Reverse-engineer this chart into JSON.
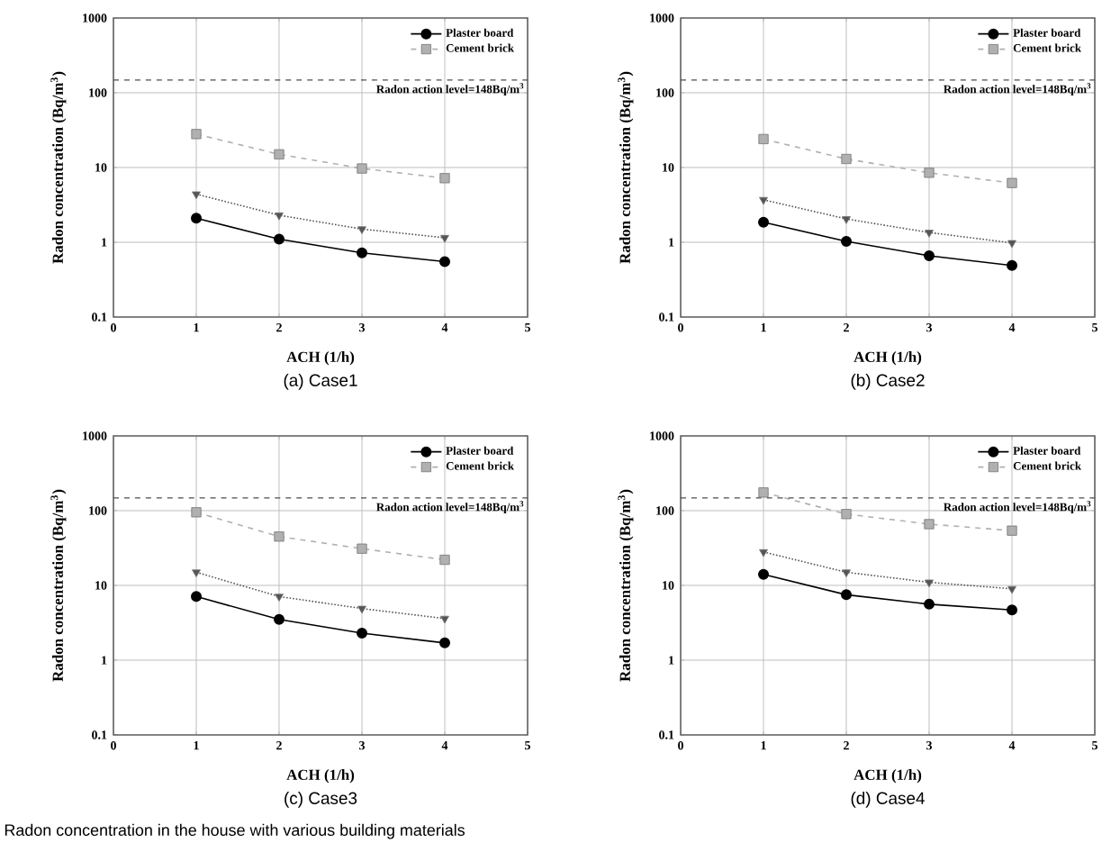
{
  "chart_data": [
    {
      "type": "line",
      "title": "(a)  Case1",
      "xlabel": "ACH (1/h)",
      "ylabel": "Radon concentration (Bq/m$^{3}$)",
      "x": [
        1,
        2,
        3,
        4
      ],
      "xlim": [
        0,
        5
      ],
      "xticks": [
        0,
        1,
        2,
        3,
        4,
        5
      ],
      "ylim": [
        0.1,
        1000
      ],
      "yticks": [
        0.1,
        1,
        10,
        100,
        1000
      ],
      "log": "y",
      "grid": true,
      "legend": "top right",
      "series": [
        {
          "name": "Plaster board",
          "color": "#000000",
          "marker": "circle",
          "line_style": "solid",
          "values": [
            2.1,
            1.1,
            0.72,
            0.55
          ]
        },
        {
          "color": "#555555",
          "marker": "triangle",
          "line_style": "dotted",
          "values": [
            4.4,
            2.3,
            1.5,
            1.15
          ]
        },
        {
          "name": "Cement brick",
          "color": "#b0b0b0",
          "marker": "square",
          "line_style": "dashed",
          "values": [
            28,
            15,
            9.7,
            7.2
          ]
        }
      ],
      "ref_lines": [
        {
          "axis": "y",
          "value": 148,
          "label": "Radon action level=148Bq/m$^{3}$",
          "line_style": "dashed"
        }
      ]
    },
    {
      "type": "line",
      "title": "(b)  Case2",
      "xlabel": "ACH (1/h)",
      "ylabel": "Radon concentration (Bq/m$^{3}$)",
      "x": [
        1,
        2,
        3,
        4
      ],
      "xlim": [
        0,
        5
      ],
      "xticks": [
        0,
        1,
        2,
        3,
        4,
        5
      ],
      "ylim": [
        0.1,
        1000
      ],
      "yticks": [
        0.1,
        1,
        10,
        100,
        1000
      ],
      "log": "y",
      "grid": true,
      "legend": "top right",
      "series": [
        {
          "name": "Plaster board",
          "color": "#000000",
          "marker": "circle",
          "line_style": "solid",
          "values": [
            1.85,
            1.03,
            0.66,
            0.49
          ]
        },
        {
          "color": "#555555",
          "marker": "triangle",
          "line_style": "dotted",
          "values": [
            3.7,
            2.05,
            1.35,
            0.98
          ]
        },
        {
          "name": "Cement brick",
          "color": "#b0b0b0",
          "marker": "square",
          "line_style": "dashed",
          "values": [
            24,
            13,
            8.5,
            6.2
          ]
        }
      ],
      "ref_lines": [
        {
          "axis": "y",
          "value": 148,
          "label": "Radon action level=148Bq/m$^{3}$",
          "line_style": "dashed"
        }
      ]
    },
    {
      "type": "line",
      "title": "(c)  Case3",
      "xlabel": "ACH (1/h)",
      "ylabel": "Radon concentration (Bq/m$^{3}$)",
      "x": [
        1,
        2,
        3,
        4
      ],
      "xlim": [
        0,
        5
      ],
      "xticks": [
        0,
        1,
        2,
        3,
        4,
        5
      ],
      "ylim": [
        0.1,
        1000
      ],
      "yticks": [
        0.1,
        1,
        10,
        100,
        1000
      ],
      "log": "y",
      "grid": true,
      "legend": "top right",
      "series": [
        {
          "name": "Plaster board",
          "color": "#000000",
          "marker": "circle",
          "line_style": "solid",
          "values": [
            7.1,
            3.5,
            2.3,
            1.7
          ]
        },
        {
          "color": "#555555",
          "marker": "triangle",
          "line_style": "dotted",
          "values": [
            15,
            7.1,
            4.9,
            3.6
          ]
        },
        {
          "name": "Cement brick",
          "color": "#b0b0b0",
          "marker": "square",
          "line_style": "dashed",
          "values": [
            95,
            45,
            31,
            22
          ]
        }
      ],
      "ref_lines": [
        {
          "axis": "y",
          "value": 148,
          "label": "Radon action level=148Bq/m$^{3}$",
          "line_style": "dashed"
        }
      ],
      "annotations": [
        "Radon concentration in the house with various building materials"
      ]
    },
    {
      "type": "line",
      "title": "(d)  Case4",
      "xlabel": "ACH (1/h)",
      "ylabel": "Radon concentration (Bq/m$^{3}$)",
      "x": [
        1,
        2,
        3,
        4
      ],
      "xlim": [
        0,
        5
      ],
      "xticks": [
        0,
        1,
        2,
        3,
        4,
        5
      ],
      "ylim": [
        0.1,
        1000
      ],
      "yticks": [
        0.1,
        1,
        10,
        100,
        1000
      ],
      "log": "y",
      "grid": true,
      "legend": "top right",
      "series": [
        {
          "name": "Plaster board",
          "color": "#000000",
          "marker": "circle",
          "line_style": "solid",
          "values": [
            14,
            7.5,
            5.6,
            4.7
          ]
        },
        {
          "color": "#555555",
          "marker": "triangle",
          "line_style": "dotted",
          "values": [
            28,
            15,
            11,
            9
          ]
        },
        {
          "name": "Cement brick",
          "color": "#b0b0b0",
          "marker": "square",
          "line_style": "dashed",
          "values": [
            175,
            90,
            66,
            54
          ]
        }
      ],
      "ref_lines": [
        {
          "axis": "y",
          "value": 148,
          "label": "Radon action level=148Bq/m$^{3}$",
          "line_style": "dashed"
        }
      ]
    }
  ]
}
